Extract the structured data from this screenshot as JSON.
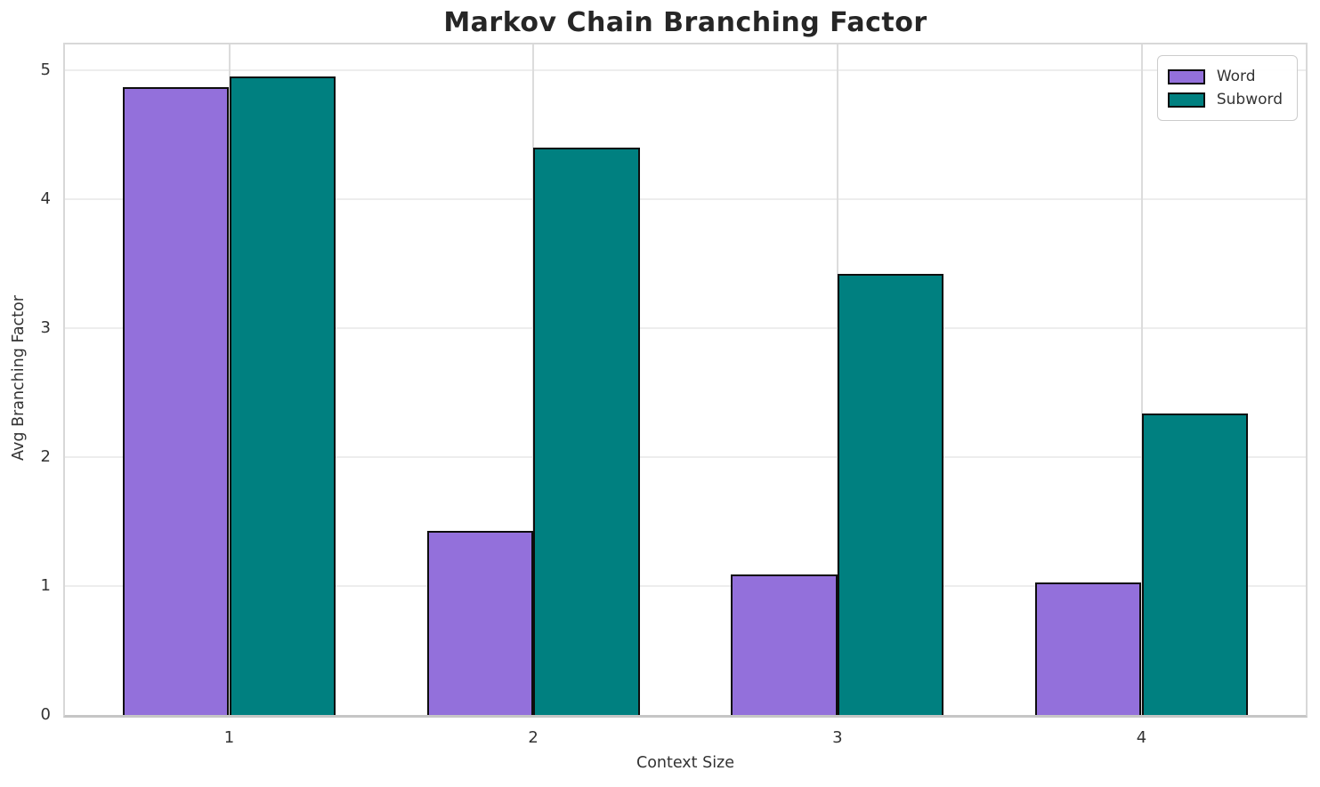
{
  "title": "Markov Chain Branching Factor",
  "chart_data": {
    "type": "bar",
    "title": "Markov Chain Branching Factor",
    "xlabel": "Context Size",
    "ylabel": "Avg Branching Factor",
    "categories": [
      "1",
      "2",
      "3",
      "4"
    ],
    "series": [
      {
        "name": "Word",
        "color": "#9370DB",
        "values": [
          4.87,
          1.43,
          1.09,
          1.03
        ]
      },
      {
        "name": "Subword",
        "color": "#008080",
        "values": [
          4.95,
          4.4,
          3.42,
          2.34
        ]
      }
    ],
    "yticks": [
      0,
      1,
      2,
      3,
      4,
      5
    ],
    "ylim": [
      0,
      5.2
    ],
    "bar_width_data_units": 0.35,
    "bar_edge_color": "#0d0d0d",
    "grid": true,
    "legend_position": "upper right",
    "legend_entries": [
      "Word",
      "Subword"
    ]
  }
}
